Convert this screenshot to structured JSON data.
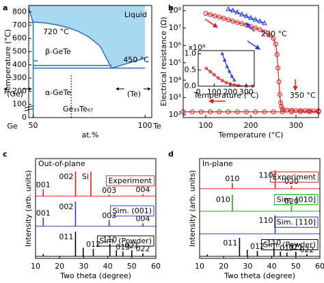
{
  "chart_data": [
    {
      "panel": "a",
      "type": "phase",
      "xlabel": "at.%",
      "ylabel": "Temperature (°C)",
      "xlim": [
        48,
        103
      ],
      "ylim": [
        0,
        850
      ],
      "xticks": [
        50,
        100
      ],
      "yticks": [
        0,
        100,
        200,
        300,
        400,
        500,
        600,
        700,
        800
      ],
      "end_labels": [
        "Ge",
        "Te"
      ],
      "liquid_color": "#a9d9f2",
      "line_color": "#2b6cb5",
      "liquidus": {
        "x": [
          48,
          49,
          50,
          52,
          55,
          60,
          65,
          70,
          75,
          80,
          85,
          90,
          95,
          100
        ],
        "y": [
          830,
          770,
          724,
          722,
          718,
          705,
          685,
          655,
          610,
          540,
          375,
          400,
          425,
          450
        ]
      },
      "lines": [
        {
          "x": [
            48,
            50
          ],
          "y": [
            720,
            720
          ]
        },
        {
          "x": [
            50,
            100
          ],
          "y": [
            375,
            375
          ]
        },
        {
          "x": [
            50,
            85
          ],
          "y": [
            395,
            395
          ]
        },
        {
          "x": [
            50,
            50
          ],
          "y": [
            0,
            724
          ]
        },
        {
          "x": [
            50,
            52
          ],
          "y": [
            430,
            430
          ]
        }
      ],
      "dashed": {
        "x": [
          67,
          67
        ],
        "y": [
          0,
          330
        ]
      },
      "annotations": [
        "Liquid",
        "720 °C",
        "β-GeTe",
        "450 °C",
        "α-GeTe",
        "(Ge)",
        "(Te)",
        "Ge₃₃Te₆₇"
      ]
    },
    {
      "panel": "b",
      "type": "line",
      "log_y": true,
      "xlabel": "Temperature (°C)",
      "ylabel": "Electrical resistance (Ω)",
      "xlim": [
        50,
        350
      ],
      "ylim": [
        70,
        200000000
      ],
      "xticks": [
        100,
        200,
        300
      ],
      "yticks": [
        {
          "value": 100,
          "label": "10²"
        },
        {
          "value": 1000,
          "label": "10³"
        },
        {
          "value": 10000,
          "label": "10⁴"
        },
        {
          "value": 100000,
          "label": "10⁵"
        },
        {
          "value": 1000000,
          "label": "10⁶"
        },
        {
          "value": 10000000,
          "label": "10⁷"
        },
        {
          "value": 100000000,
          "label": "10⁸"
        }
      ],
      "series": [
        {
          "color": "#e02020",
          "marker": "circle",
          "x": [
            100,
            110,
            120,
            130,
            140,
            150,
            160,
            170,
            180,
            190,
            200,
            210,
            220,
            230,
            240,
            250,
            255,
            258,
            260,
            262,
            264,
            266,
            268,
            270,
            280,
            290,
            300,
            310,
            320,
            330,
            340,
            350
          ],
          "values": [
            70000000,
            60000000,
            50000000,
            43000000,
            36000000,
            30000000,
            25000000,
            21000000,
            18000000,
            15000000,
            12000000,
            10000000,
            8000000,
            6000000,
            4000000,
            2500000,
            1200000,
            300000,
            50000,
            8000,
            1500,
            500,
            300,
            220,
            190,
            185,
            180,
            180,
            175,
            175,
            170,
            170
          ]
        },
        {
          "color": "#e02020",
          "marker": "circle",
          "x": [
            350,
            330,
            310,
            290,
            270,
            250,
            230,
            210,
            190,
            170,
            150,
            130,
            110,
            90,
            70,
            50
          ],
          "values": [
            150,
            150,
            150,
            150,
            150,
            150,
            150,
            150,
            150,
            150,
            150,
            150,
            150,
            150,
            150,
            150
          ]
        },
        {
          "color": "#2040d0",
          "marker": "triangle",
          "x": [
            150,
            160,
            170,
            180,
            190,
            200,
            210,
            220,
            230
          ],
          "values": [
            120000000,
            100000000,
            80000000,
            60000000,
            48000000,
            38000000,
            30000000,
            24000000,
            19000000
          ]
        }
      ],
      "annotations": [
        {
          "text": "230 °C",
          "color": "#2040d0"
        },
        {
          "text": "350 °C",
          "color": "#e02020"
        }
      ]
    },
    {
      "type": "line",
      "xlabel": "Temperature (°C)",
      "ylabel": "x10⁸",
      "xlim": [
        0,
        350
      ],
      "ylim": [
        0,
        1.1
      ],
      "xticks": [
        0,
        100,
        200,
        300
      ],
      "yticks": [
        {
          "value": 0,
          "label": "0.0"
        },
        {
          "value": 0.5,
          "label": "0.5"
        },
        {
          "value": 1,
          "label": "1.0"
        }
      ],
      "series": [
        {
          "color": "#e02020",
          "marker": "circle",
          "x": [
            50,
            75,
            100,
            125,
            150,
            175,
            200,
            225,
            250,
            300,
            340
          ],
          "values": [
            0.55,
            0.45,
            0.35,
            0.25,
            0.17,
            0.11,
            0.07,
            0.04,
            0.02,
            0,
            0
          ]
        },
        {
          "color": "#2040d0",
          "marker": "triangle",
          "x": [
            150,
            165,
            180,
            195,
            210,
            225
          ],
          "values": [
            1,
            0.8,
            0.6,
            0.45,
            0.3,
            0.18
          ]
        }
      ]
    },
    {
      "panel": "c",
      "type": "stick",
      "title": "Out-of-plane",
      "xlabel": "Two theta (degree)",
      "ylabel": "Intensity (arb. units)",
      "xlim": [
        10,
        60
      ],
      "xticks": [
        10,
        20,
        30,
        40,
        50,
        60
      ],
      "series": [
        {
          "name": "Experiment",
          "color": "#e02020",
          "x": [
            13.2,
            26.6,
            33.0,
            40.6,
            54.6
          ],
          "values": [
            0.28,
            1,
            1,
            0.06,
            0.08
          ],
          "labels": [
            "001",
            "002",
            "Si",
            "003",
            "004"
          ]
        },
        {
          "name": "Sim. (001)",
          "color": "#2a3fb0",
          "x": [
            13.2,
            26.6,
            40.6,
            54.6
          ],
          "values": [
            0.35,
            1,
            0.25,
            0.12
          ],
          "labels": [
            "001",
            "002",
            "003",
            "004"
          ]
        },
        {
          "name": "Sim. (Powder)",
          "color": "#000000",
          "x": [
            13.2,
            26.6,
            29.8,
            34.0,
            40.9,
            43.6,
            46.3,
            50.0,
            54.6
          ],
          "values": [
            0.1,
            1,
            0.35,
            0.3,
            0.5,
            0.25,
            0.2,
            0.25,
            0.12
          ],
          "labels": [
            null,
            "011",
            null,
            "012̄",
            "110",
            null,
            "013̄",
            "02̄1",
            "022"
          ]
        }
      ]
    },
    {
      "panel": "d",
      "type": "stick",
      "title": "In-plane",
      "xlabel": "Two theta (degree)",
      "ylabel": "Intensity (arb. units)",
      "xlim": [
        10,
        60
      ],
      "xticks": [
        10,
        20,
        30,
        40,
        50,
        60
      ],
      "series": [
        {
          "name": "Experiment",
          "color": "#e02020",
          "x": [
            23.6,
            41.4,
            48.2
          ],
          "values": [
            0.3,
            1,
            0.15
          ],
          "labels": [
            "010",
            "110",
            "020"
          ]
        },
        {
          "name": "Sim. [010]",
          "color": "#1fa81f",
          "x": [
            23.6,
            48.2
          ],
          "values": [
            0.9,
            0.3
          ],
          "labels": [
            "010",
            "020"
          ]
        },
        {
          "name": "Sim. [110]",
          "color": "#2a3fb0",
          "x": [
            41.4
          ],
          "values": [
            1
          ],
          "labels": [
            "110"
          ]
        },
        {
          "name": "Sim. (Powder)",
          "color": "#000000",
          "x": [
            13.2,
            26.6,
            29.8,
            34.0,
            40.9,
            43.6,
            46.3,
            50.0,
            54.6
          ],
          "values": [
            0.1,
            1,
            0.35,
            0.3,
            0.5,
            0.25,
            0.2,
            0.25,
            0.12
          ],
          "labels": [
            null,
            "011",
            null,
            "012̄",
            "110",
            null,
            "013̄",
            "02̄1",
            "022"
          ]
        }
      ]
    }
  ]
}
